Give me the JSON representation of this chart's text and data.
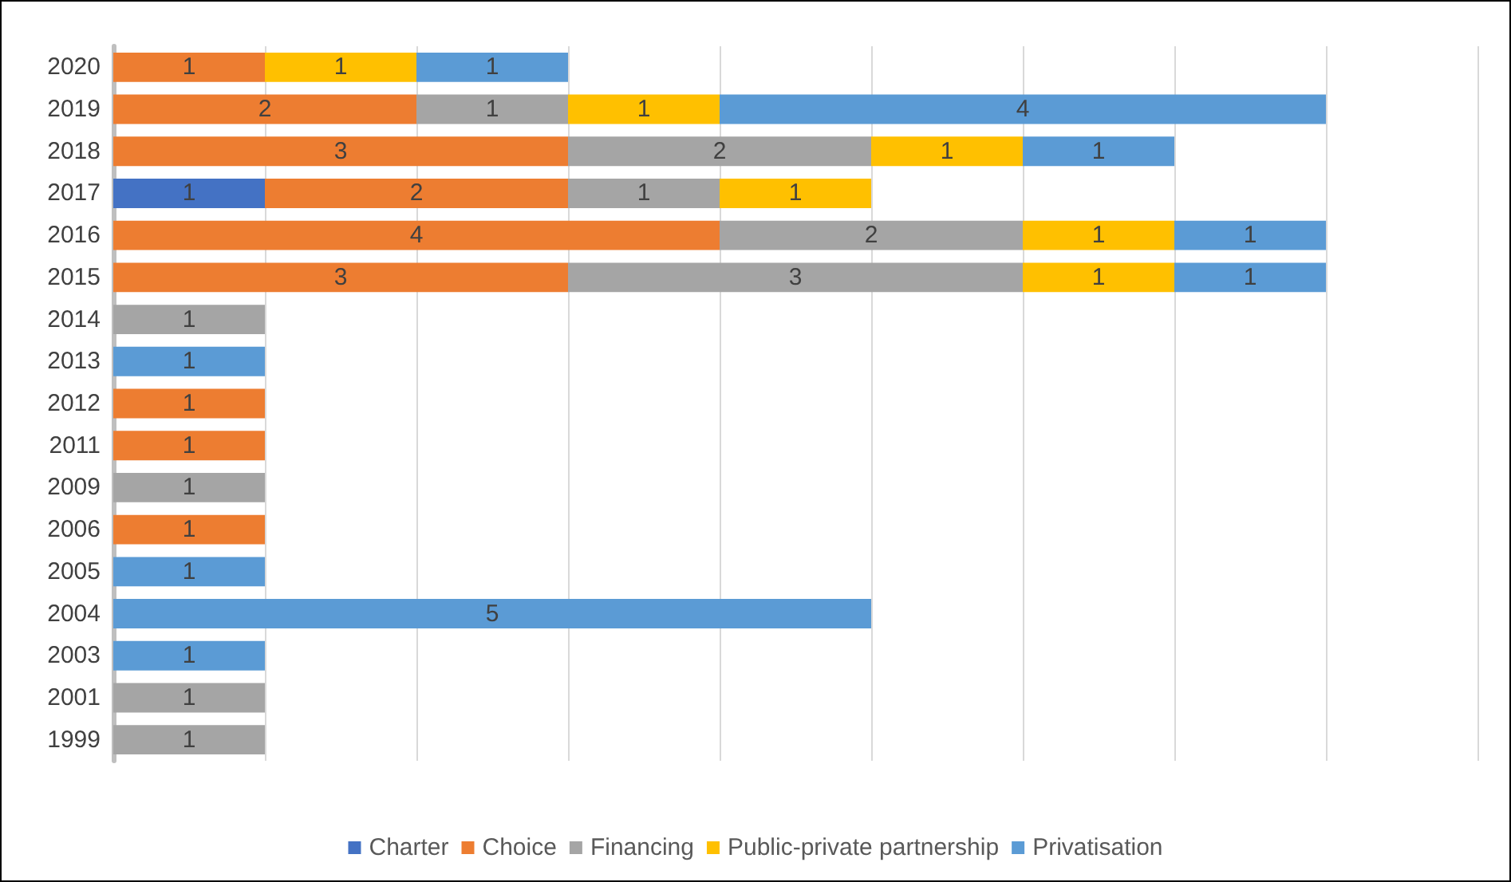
{
  "chart_data": {
    "type": "bar",
    "orientation": "horizontal",
    "stacked": true,
    "data_labels": true,
    "grid": "x",
    "tick_labels": "y",
    "legend": "bottom",
    "categories": [
      "2020",
      "2019",
      "2018",
      "2017",
      "2016",
      "2015",
      "2014",
      "2013",
      "2012",
      "2011",
      "2009",
      "2006",
      "2005",
      "2004",
      "2003",
      "2001",
      "1999"
    ],
    "xlim": [
      0,
      9
    ],
    "xticks": [
      {
        "value": 0,
        "label": null
      },
      {
        "value": 1,
        "label": null
      },
      {
        "value": 2,
        "label": null
      },
      {
        "value": 3,
        "label": null
      },
      {
        "value": 4,
        "label": null
      },
      {
        "value": 5,
        "label": null
      },
      {
        "value": 6,
        "label": null
      },
      {
        "value": 7,
        "label": null
      },
      {
        "value": 8,
        "label": null
      },
      {
        "value": 9,
        "label": null
      }
    ],
    "series": [
      {
        "name": "Charter",
        "color": "#4472c4",
        "values": [
          null,
          null,
          null,
          1,
          null,
          null,
          null,
          null,
          null,
          null,
          null,
          null,
          null,
          null,
          null,
          null,
          null
        ]
      },
      {
        "name": "Choice",
        "color": "#ed7d31",
        "values": [
          1,
          2,
          3,
          2,
          4,
          3,
          null,
          null,
          1,
          1,
          null,
          1,
          null,
          null,
          null,
          null,
          null
        ]
      },
      {
        "name": "Financing",
        "color": "#a5a5a5",
        "values": [
          null,
          1,
          2,
          1,
          2,
          3,
          1,
          null,
          null,
          null,
          1,
          null,
          null,
          null,
          null,
          1,
          1
        ]
      },
      {
        "name": "Public-private partnership",
        "color": "#ffc000",
        "values": [
          1,
          1,
          1,
          1,
          1,
          1,
          null,
          null,
          null,
          null,
          null,
          null,
          null,
          null,
          null,
          null,
          null
        ]
      },
      {
        "name": "Privatisation",
        "color": "#5b9bd5",
        "values": [
          1,
          4,
          1,
          null,
          1,
          1,
          null,
          1,
          null,
          null,
          null,
          null,
          1,
          5,
          1,
          null,
          null
        ]
      }
    ]
  }
}
